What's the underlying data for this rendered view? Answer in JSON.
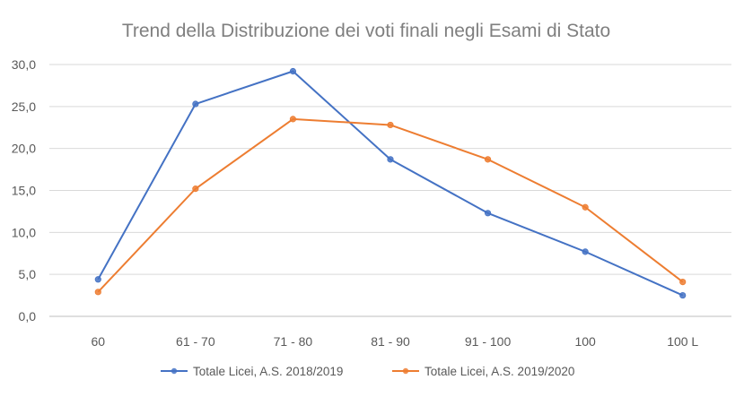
{
  "chart_data": {
    "type": "line",
    "title": "Trend della Distribuzione dei voti finali negli Esami di Stato",
    "xlabel": "",
    "ylabel": "",
    "categories": [
      "60",
      "61 - 70",
      "71 - 80",
      "81 - 90",
      "91 - 100",
      "100",
      "100 L"
    ],
    "ylim": [
      0,
      30
    ],
    "yticks": [
      "0,0",
      "5,0",
      "10,0",
      "15,0",
      "20,0",
      "25,0",
      "30,0"
    ],
    "ytick_values": [
      0,
      5,
      10,
      15,
      20,
      25,
      30
    ],
    "grid": true,
    "legend": "bottom",
    "series": [
      {
        "name": "Totale Licei, A.S. 2018/2019",
        "color": "#4472c4",
        "values": [
          4.4,
          25.3,
          29.2,
          18.7,
          12.3,
          7.7,
          2.5
        ]
      },
      {
        "name": "Totale Licei, A.S. 2019/2020",
        "color": "#ed7d31",
        "values": [
          2.9,
          15.2,
          23.5,
          22.8,
          18.7,
          13.0,
          4.1
        ]
      }
    ]
  }
}
